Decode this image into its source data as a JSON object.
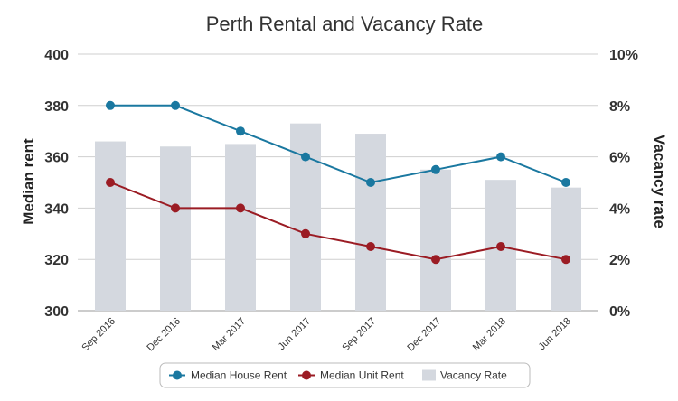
{
  "chart_data": {
    "type": "bar+line",
    "title": "Perth Rental and Vacancy Rate",
    "categories": [
      "Sep 2016",
      "Dec 2016",
      "Mar 2017",
      "Jun 2017",
      "Sep 2017",
      "Dec 2017",
      "Mar 2018",
      "Jun 2018"
    ],
    "y_left": {
      "label": "Median rent",
      "ticks": [
        "300",
        "320",
        "340",
        "360",
        "380",
        "400"
      ],
      "ylim": [
        300,
        400
      ]
    },
    "y_right": {
      "label": "Vacancy rate",
      "ticks": [
        "0%",
        "2%",
        "4%",
        "6%",
        "8%",
        "10%"
      ],
      "ylim": [
        0,
        10
      ]
    },
    "series": [
      {
        "name": "Median House Rent",
        "kind": "line",
        "axis": "left",
        "color": "#1a78a0",
        "values": [
          380,
          380,
          370,
          360,
          350,
          355,
          360,
          350
        ]
      },
      {
        "name": "Median Unit Rent",
        "kind": "line",
        "axis": "left",
        "color": "#9b1c24",
        "values": [
          350,
          340,
          340,
          330,
          325,
          320,
          325,
          320
        ]
      },
      {
        "name": "Vacancy Rate",
        "kind": "bar",
        "axis": "right",
        "color": "#d4d8df",
        "values": [
          6.6,
          6.4,
          6.5,
          7.3,
          6.9,
          5.5,
          5.1,
          4.8
        ]
      }
    ],
    "grid": true,
    "legend": "bottom"
  }
}
